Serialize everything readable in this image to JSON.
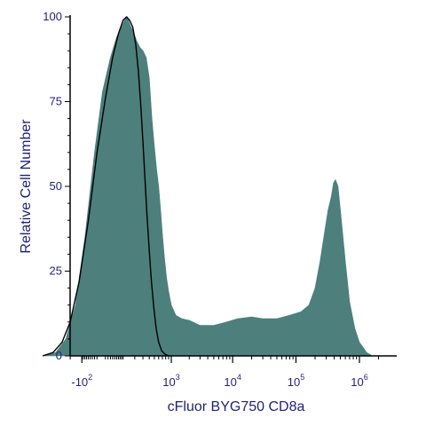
{
  "chart_data": {
    "type": "area",
    "title": "",
    "xlabel": "cFluor BYG750 CD8a",
    "ylabel": "Relative Cell Number",
    "x_scale": "biexponential",
    "x_ticks": [
      {
        "value": -100,
        "base": "-10",
        "exp": "2"
      },
      {
        "value": 1000,
        "base": "10",
        "exp": "3"
      },
      {
        "value": 10000,
        "base": "10",
        "exp": "4"
      },
      {
        "value": 100000,
        "base": "10",
        "exp": "5"
      },
      {
        "value": 1000000,
        "base": "10",
        "exp": "6"
      }
    ],
    "y_ticks": [
      0,
      25,
      50,
      75,
      100
    ],
    "ylim": [
      0,
      100
    ],
    "grid": false,
    "colors": {
      "filled": "#4d7f7c",
      "outline": "#000000",
      "axis": "#000000",
      "text": "#1f1f7a"
    },
    "series": [
      {
        "style": "filled",
        "points": [
          [
            -700,
            0
          ],
          [
            -400,
            1
          ],
          [
            -250,
            5
          ],
          [
            -150,
            15
          ],
          [
            -80,
            35
          ],
          [
            -30,
            60
          ],
          [
            0,
            78
          ],
          [
            30,
            88
          ],
          [
            60,
            94
          ],
          [
            90,
            97
          ],
          [
            110,
            99
          ],
          [
            130,
            100
          ],
          [
            150,
            98
          ],
          [
            180,
            96
          ],
          [
            220,
            93
          ],
          [
            260,
            91
          ],
          [
            300,
            90
          ],
          [
            350,
            88
          ],
          [
            400,
            82
          ],
          [
            450,
            70
          ],
          [
            500,
            62
          ],
          [
            550,
            55
          ],
          [
            600,
            50
          ],
          [
            650,
            43
          ],
          [
            700,
            36
          ],
          [
            760,
            29
          ],
          [
            830,
            23
          ],
          [
            900,
            19
          ],
          [
            1000,
            15
          ],
          [
            1200,
            12
          ],
          [
            1500,
            11
          ],
          [
            2000,
            10.5
          ],
          [
            3000,
            9
          ],
          [
            5000,
            9
          ],
          [
            8000,
            10
          ],
          [
            12000,
            11
          ],
          [
            20000,
            11.5
          ],
          [
            30000,
            11
          ],
          [
            50000,
            11
          ],
          [
            80000,
            12
          ],
          [
            120000,
            13
          ],
          [
            160000,
            15
          ],
          [
            200000,
            20
          ],
          [
            240000,
            28
          ],
          [
            280000,
            36
          ],
          [
            320000,
            43
          ],
          [
            360000,
            47
          ],
          [
            390000,
            51
          ],
          [
            420000,
            52
          ],
          [
            460000,
            50
          ],
          [
            520000,
            40
          ],
          [
            600000,
            28
          ],
          [
            700000,
            16
          ],
          [
            850000,
            8
          ],
          [
            1000000,
            4
          ],
          [
            1300000,
            1
          ],
          [
            1600000,
            0
          ]
        ]
      },
      {
        "style": "outline",
        "points": [
          [
            -700,
            0
          ],
          [
            -450,
            1
          ],
          [
            -300,
            4
          ],
          [
            -200,
            10
          ],
          [
            -120,
            22
          ],
          [
            -60,
            40
          ],
          [
            -20,
            60
          ],
          [
            10,
            76
          ],
          [
            40,
            88
          ],
          [
            70,
            95
          ],
          [
            100,
            99
          ],
          [
            125,
            100
          ],
          [
            150,
            99
          ],
          [
            180,
            97
          ],
          [
            210,
            92
          ],
          [
            240,
            84
          ],
          [
            270,
            74
          ],
          [
            300,
            63
          ],
          [
            330,
            52
          ],
          [
            360,
            42
          ],
          [
            400,
            31
          ],
          [
            440,
            22
          ],
          [
            490,
            14
          ],
          [
            540,
            8
          ],
          [
            600,
            4
          ],
          [
            680,
            1.5
          ],
          [
            780,
            0.5
          ],
          [
            900,
            0
          ]
        ]
      }
    ]
  }
}
